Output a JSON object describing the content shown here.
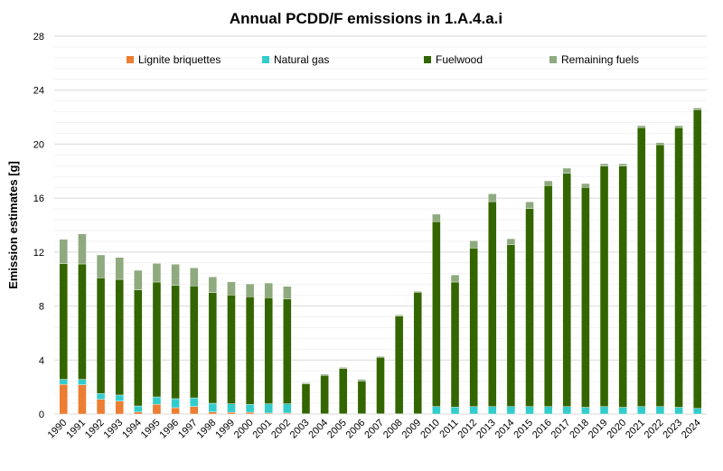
{
  "chart_data": {
    "type": "bar",
    "stacked": true,
    "title": "Annual PCDD/F emissions in 1.A.4.a.i",
    "xlabel": "",
    "ylabel": "Emission estimates [g]",
    "ylim": [
      0,
      28
    ],
    "yticks": [
      0,
      4,
      8,
      12,
      16,
      20,
      24,
      28
    ],
    "grid": true,
    "legend_position": "top",
    "categories": [
      "1990",
      "1991",
      "1992",
      "1993",
      "1994",
      "1995",
      "1996",
      "1997",
      "1998",
      "1999",
      "2000",
      "2001",
      "2002",
      "2003",
      "2004",
      "2005",
      "2006",
      "2007",
      "2008",
      "2009",
      "2010",
      "2011",
      "2012",
      "2013",
      "2014",
      "2015",
      "2016",
      "2017",
      "2018",
      "2019",
      "2020",
      "2021",
      "2022",
      "2023",
      "2024"
    ],
    "series": [
      {
        "name": "Lignite briquettes",
        "color": "#ED7D31",
        "values": [
          2.2,
          2.17,
          1.09,
          0.96,
          0.15,
          0.72,
          0.47,
          0.56,
          0.15,
          0.13,
          0.13,
          0.07,
          0.07,
          0,
          0,
          0,
          0,
          0,
          0,
          0,
          0,
          0,
          0,
          0,
          0,
          0,
          0,
          0,
          0,
          0,
          0,
          0,
          0,
          0,
          0
        ]
      },
      {
        "name": "Natural gas",
        "color": "#33CCCC",
        "values": [
          0.37,
          0.4,
          0.43,
          0.45,
          0.45,
          0.55,
          0.67,
          0.64,
          0.65,
          0.63,
          0.58,
          0.69,
          0.69,
          0.02,
          0.02,
          0.02,
          0.02,
          0.02,
          0.02,
          0.02,
          0.56,
          0.52,
          0.55,
          0.55,
          0.55,
          0.55,
          0.55,
          0.55,
          0.5,
          0.55,
          0.5,
          0.55,
          0.55,
          0.5,
          0.42
        ]
      },
      {
        "name": "Fuelwood",
        "color": "#336600",
        "values": [
          8.57,
          8.55,
          8.57,
          8.57,
          8.6,
          8.51,
          8.39,
          8.29,
          8.2,
          8.06,
          7.98,
          7.86,
          7.77,
          2.21,
          2.84,
          3.35,
          2.43,
          4.18,
          7.24,
          9.0,
          13.7,
          9.26,
          11.75,
          15.19,
          11.99,
          14.67,
          16.38,
          17.29,
          16.3,
          17.83,
          17.88,
          20.68,
          19.41,
          20.73,
          22.13
        ]
      },
      {
        "name": "Remaining fuels",
        "color": "#8FAA7F",
        "values": [
          1.81,
          2.23,
          1.7,
          1.63,
          1.45,
          1.38,
          1.57,
          1.34,
          1.16,
          0.98,
          0.95,
          1.09,
          0.93,
          0.09,
          0.09,
          0.09,
          0.12,
          0.07,
          0.09,
          0.07,
          0.55,
          0.53,
          0.54,
          0.58,
          0.45,
          0.5,
          0.35,
          0.38,
          0.28,
          0.17,
          0.17,
          0.14,
          0.15,
          0.14,
          0.13
        ]
      }
    ]
  }
}
